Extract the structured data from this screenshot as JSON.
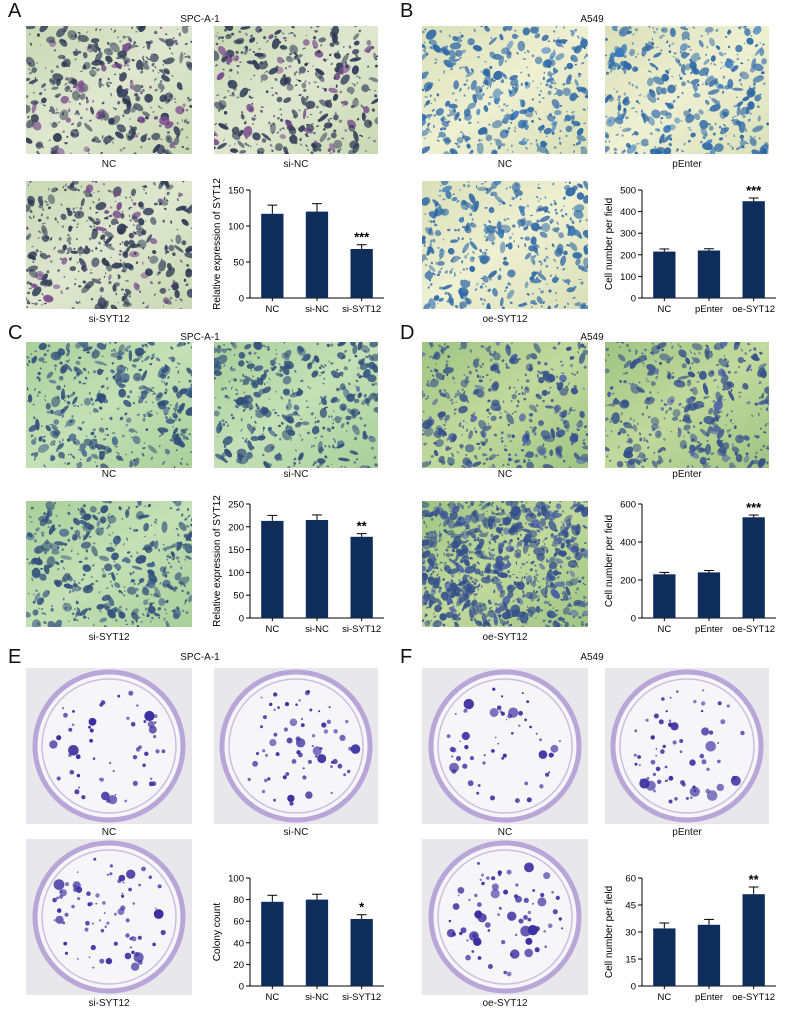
{
  "panels": [
    {
      "letter": "A",
      "title": "SPC-A-1",
      "kind": "transwell",
      "captions": [
        "NC",
        "si-NC",
        "si-SYT12"
      ],
      "palette": {
        "bg1": "#c9d8b4",
        "bg2": "#dfe7cf",
        "cell": "#2e3a55",
        "cell2": "#7a4a8c"
      },
      "chart": {
        "type": "bar",
        "categories": [
          "NC",
          "si-NC",
          "si-SYT12"
        ],
        "values": [
          117,
          120,
          68
        ],
        "errors": [
          12,
          11,
          6
        ],
        "ylabel": "Relative expression of SYT12",
        "ylim": [
          0,
          150
        ],
        "yticks": [
          0,
          50,
          100,
          150
        ],
        "annotations": [
          "",
          "",
          "***"
        ],
        "bar_color": "#0e2d5a"
      }
    },
    {
      "letter": "B",
      "title": "A549",
      "kind": "transwell",
      "captions": [
        "NC",
        "pEnter",
        "oe-SYT12"
      ],
      "palette": {
        "bg1": "#d9e0b8",
        "bg2": "#eef0d2",
        "cell": "#2d67a6",
        "cell2": "#3b7bbd"
      },
      "chart": {
        "type": "bar",
        "categories": [
          "NC",
          "pEnter",
          "oe-SYT12"
        ],
        "values": [
          215,
          220,
          448
        ],
        "errors": [
          12,
          8,
          15
        ],
        "ylabel": "Cell number per field",
        "ylim": [
          0,
          500
        ],
        "yticks": [
          0,
          100,
          200,
          300,
          400,
          500
        ],
        "annotations": [
          "",
          "",
          "***"
        ],
        "bar_color": "#0e2d5a"
      }
    },
    {
      "letter": "C",
      "title": "SPC-A-1",
      "kind": "transwell",
      "captions": [
        "NC",
        "si-NC",
        "si-SYT12"
      ],
      "palette": {
        "bg1": "#a9cf9a",
        "bg2": "#c5e0b6",
        "cell": "#2f4f7a",
        "cell2": "#375b88"
      },
      "chart": {
        "type": "bar",
        "categories": [
          "NC",
          "si-NC",
          "si-SYT12"
        ],
        "values": [
          213,
          215,
          178
        ],
        "errors": [
          12,
          11,
          7
        ],
        "ylabel": "Relative expression of SYT12",
        "ylim": [
          0,
          250
        ],
        "yticks": [
          0,
          50,
          100,
          150,
          200,
          250
        ],
        "annotations": [
          "",
          "",
          "**"
        ],
        "bar_color": "#0e2d5a"
      }
    },
    {
      "letter": "D",
      "title": "A549",
      "kind": "transwell",
      "captions": [
        "NC",
        "pEnter",
        "oe-SYT12"
      ],
      "palette": {
        "bg1": "#9fc482",
        "bg2": "#c2d99d",
        "cell": "#34508a",
        "cell2": "#4a5ea8"
      },
      "chart": {
        "type": "bar",
        "categories": [
          "NC",
          "pEnter",
          "oe-SYT12"
        ],
        "values": [
          230,
          240,
          530
        ],
        "errors": [
          10,
          10,
          12
        ],
        "ylabel": "Cell number per field",
        "ylim": [
          0,
          600
        ],
        "yticks": [
          0,
          200,
          400,
          600
        ],
        "annotations": [
          "",
          "",
          "***"
        ],
        "bar_color": "#0e2d5a"
      }
    },
    {
      "letter": "E",
      "title": "SPC-A-1",
      "kind": "colony",
      "captions": [
        "NC",
        "si-NC",
        "si-SYT12"
      ],
      "palette": {
        "bg1": "#e7e7ec",
        "bg2": "#f6f6f8",
        "cell": "#3a2fa0",
        "cell2": "#b9a6d8"
      },
      "chart": {
        "type": "bar",
        "categories": [
          "NC",
          "si-NC",
          "si-SYT12"
        ],
        "values": [
          78,
          80,
          62
        ],
        "errors": [
          6,
          5,
          4
        ],
        "ylabel": "Colony count",
        "ylim": [
          0,
          100
        ],
        "yticks": [
          0,
          20,
          40,
          60,
          80,
          100
        ],
        "annotations": [
          "",
          "",
          "*"
        ],
        "bar_color": "#0e2d5a"
      }
    },
    {
      "letter": "F",
      "title": "A549",
      "kind": "colony",
      "captions": [
        "NC",
        "pEnter",
        "oe-SYT12"
      ],
      "palette": {
        "bg1": "#e7e7ec",
        "bg2": "#f6f6f8",
        "cell": "#3a2fa0",
        "cell2": "#b9a6d8"
      },
      "chart": {
        "type": "bar",
        "categories": [
          "NC",
          "pEnter",
          "oe-SYT12"
        ],
        "values": [
          32,
          34,
          51
        ],
        "errors": [
          3,
          3,
          4
        ],
        "ylabel": "Cell number per field",
        "ylim": [
          0,
          60
        ],
        "yticks": [
          0,
          15,
          30,
          45,
          60
        ],
        "annotations": [
          "",
          "",
          "**"
        ],
        "bar_color": "#0e2d5a"
      }
    }
  ],
  "chart_data": [
    {
      "type": "bar",
      "categories": [
        "NC",
        "si-NC",
        "si-SYT12"
      ],
      "values": [
        117,
        120,
        68
      ],
      "ylabel": "Relative expression of SYT12",
      "ylim": [
        0,
        150
      ]
    },
    {
      "type": "bar",
      "categories": [
        "NC",
        "pEnter",
        "oe-SYT12"
      ],
      "values": [
        215,
        220,
        448
      ],
      "ylabel": "Cell number per field",
      "ylim": [
        0,
        500
      ]
    },
    {
      "type": "bar",
      "categories": [
        "NC",
        "si-NC",
        "si-SYT12"
      ],
      "values": [
        213,
        215,
        178
      ],
      "ylabel": "Relative expression of SYT12",
      "ylim": [
        0,
        250
      ]
    },
    {
      "type": "bar",
      "categories": [
        "NC",
        "pEnter",
        "oe-SYT12"
      ],
      "values": [
        230,
        240,
        530
      ],
      "ylabel": "Cell number per field",
      "ylim": [
        0,
        600
      ]
    },
    {
      "type": "bar",
      "categories": [
        "NC",
        "si-NC",
        "si-SYT12"
      ],
      "values": [
        78,
        80,
        62
      ],
      "ylabel": "Colony count",
      "ylim": [
        0,
        100
      ]
    },
    {
      "type": "bar",
      "categories": [
        "NC",
        "pEnter",
        "oe-SYT12"
      ],
      "values": [
        32,
        34,
        51
      ],
      "ylabel": "Cell number per field",
      "ylim": [
        0,
        60
      ]
    }
  ]
}
